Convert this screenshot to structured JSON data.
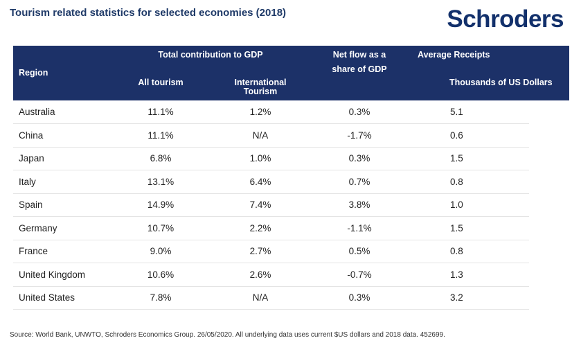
{
  "title": "Tourism related statistics for selected economies (2018)",
  "logo": "Schroders",
  "table": {
    "headers": {
      "region": "Region",
      "gdp_group": "Total contribution to GDP",
      "all_tourism": "All tourism",
      "intl_line1": "International",
      "intl_line2": "Tourism",
      "net_line1": "Net flow as a",
      "net_line2": "share of GDP",
      "receipts": "Average Receipts",
      "receipts_unit": "Thousands of US Dollars"
    },
    "rows": [
      {
        "region": "Australia",
        "all_tourism": "11.1%",
        "international": "1.2%",
        "net_flow": "0.3%",
        "receipts": "5.1"
      },
      {
        "region": "China",
        "all_tourism": "11.1%",
        "international": "N/A",
        "net_flow": "-1.7%",
        "receipts": "0.6"
      },
      {
        "region": "Japan",
        "all_tourism": "6.8%",
        "international": "1.0%",
        "net_flow": "0.3%",
        "receipts": "1.5"
      },
      {
        "region": "Italy",
        "all_tourism": "13.1%",
        "international": "6.4%",
        "net_flow": "0.7%",
        "receipts": "0.8"
      },
      {
        "region": "Spain",
        "all_tourism": "14.9%",
        "international": "7.4%",
        "net_flow": "3.8%",
        "receipts": "1.0"
      },
      {
        "region": "Germany",
        "all_tourism": "10.7%",
        "international": "2.2%",
        "net_flow": "-1.1%",
        "receipts": "1.5"
      },
      {
        "region": "France",
        "all_tourism": "9.0%",
        "international": "2.7%",
        "net_flow": "0.5%",
        "receipts": "0.8"
      },
      {
        "region": "United Kingdom",
        "all_tourism": "10.6%",
        "international": "2.6%",
        "net_flow": "-0.7%",
        "receipts": "1.3"
      },
      {
        "region": "United States",
        "all_tourism": "7.8%",
        "international": "N/A",
        "net_flow": "0.3%",
        "receipts": "3.2"
      }
    ]
  },
  "chart_data": {
    "type": "table",
    "title": "Tourism related statistics for selected economies (2018)",
    "columns": [
      "Region",
      "All tourism",
      "International Tourism",
      "Net flow as a share of GDP",
      "Average Receipts (Thousands of US Dollars)"
    ],
    "rows": [
      [
        "Australia",
        "11.1%",
        "1.2%",
        "0.3%",
        "5.1"
      ],
      [
        "China",
        "11.1%",
        "N/A",
        "-1.7%",
        "0.6"
      ],
      [
        "Japan",
        "6.8%",
        "1.0%",
        "0.3%",
        "1.5"
      ],
      [
        "Italy",
        "13.1%",
        "6.4%",
        "0.7%",
        "0.8"
      ],
      [
        "Spain",
        "14.9%",
        "7.4%",
        "3.8%",
        "1.0"
      ],
      [
        "Germany",
        "10.7%",
        "2.2%",
        "-1.1%",
        "1.5"
      ],
      [
        "France",
        "9.0%",
        "2.7%",
        "0.5%",
        "0.8"
      ],
      [
        "United Kingdom",
        "10.6%",
        "2.6%",
        "-0.7%",
        "1.3"
      ],
      [
        "United States",
        "7.8%",
        "N/A",
        "0.3%",
        "3.2"
      ]
    ]
  },
  "source": "Source: World Bank, UNWTO, Schroders Economics Group. 26/05/2020. All underlying data uses current $US dollars and 2018 data. 452699."
}
